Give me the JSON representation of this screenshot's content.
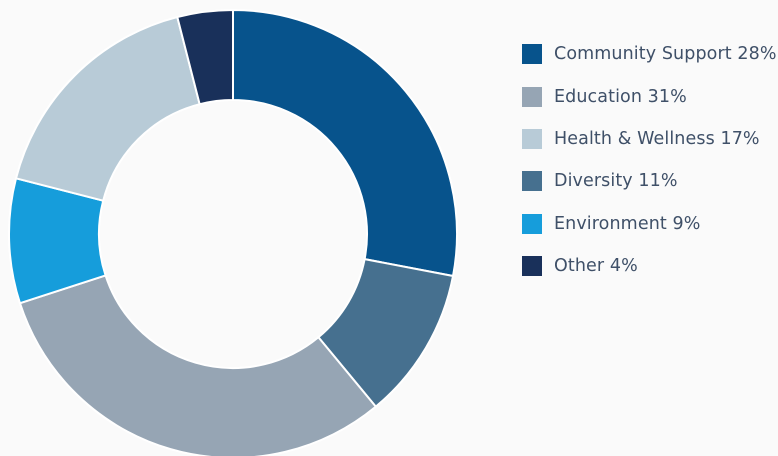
{
  "chart_data": {
    "type": "pie",
    "donut": true,
    "start_angle_deg": 0,
    "direction": "clockwise",
    "slices": [
      {
        "label": "Community Support",
        "value": 28,
        "percent_text": "28%",
        "color": "#07538c"
      },
      {
        "label": "Diversity",
        "value": 11,
        "percent_text": "11%",
        "color": "#46708f"
      },
      {
        "label": "Education",
        "value": 31,
        "percent_text": "31%",
        "color": "#96a5b4"
      },
      {
        "label": "Environment",
        "value": 9,
        "percent_text": "9%",
        "color": "#169ddb"
      },
      {
        "label": "Health & Wellness",
        "value": 17,
        "percent_text": "17%",
        "color": "#b8cbd7"
      },
      {
        "label": "Other",
        "value": 4,
        "percent_text": "4%",
        "color": "#19305a"
      }
    ],
    "legend": {
      "position": "right",
      "items": [
        {
          "label": "Community Support",
          "percent_text": "28%",
          "color": "#07538c"
        },
        {
          "label": "Education",
          "percent_text": "31%",
          "color": "#96a5b4"
        },
        {
          "label": "Health & Wellness",
          "percent_text": "17%",
          "color": "#b8cbd7"
        },
        {
          "label": "Diversity",
          "percent_text": "11%",
          "color": "#46708f"
        },
        {
          "label": "Environment",
          "percent_text": "9%",
          "color": "#169ddb"
        },
        {
          "label": "Other",
          "percent_text": "4%",
          "color": "#19305a"
        }
      ]
    }
  }
}
